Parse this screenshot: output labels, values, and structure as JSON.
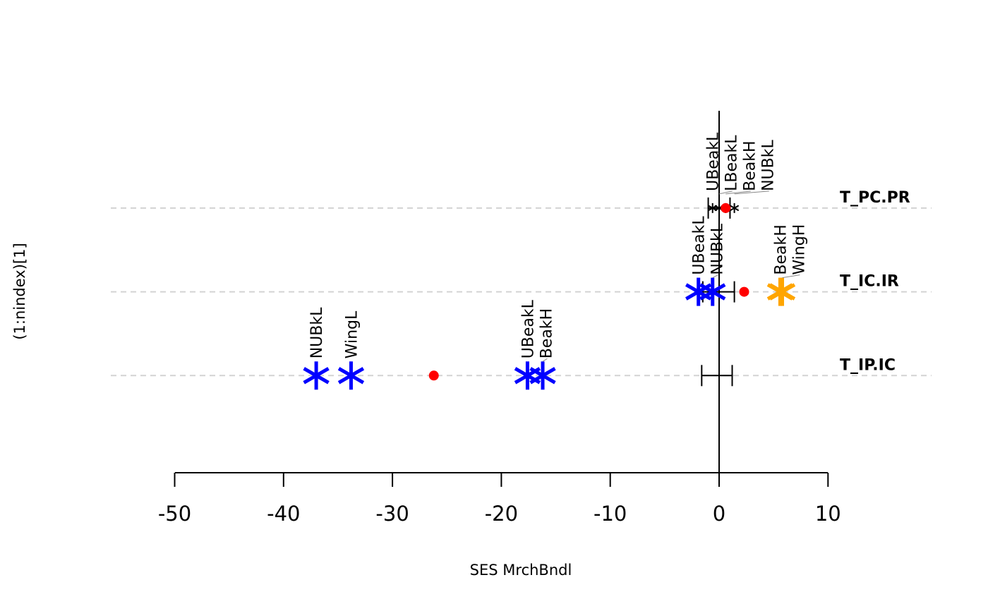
{
  "chart_data": {
    "type": "scatter",
    "title": "",
    "xlabel": "SES MrchBndl",
    "ylabel": "(1:nindex)[1]",
    "xlim": [
      -50,
      10
    ],
    "xticks": [
      -50,
      -40,
      -30,
      -20,
      -10,
      0,
      10
    ],
    "grid": "horizontal dashed at each row",
    "colors": {
      "mean": "#ff0000",
      "low": "#0000ff",
      "high": "#ffa500",
      "grid": "#d3d3d3"
    },
    "rows": [
      {
        "name": "T_IP.IC",
        "y": 1,
        "mean": -26.2,
        "ci": [
          -1.6,
          1.2
        ],
        "points": [
          {
            "label": "NUBkL",
            "x": -37.0,
            "side": "low"
          },
          {
            "label": "WingL",
            "x": -33.8,
            "side": "low"
          },
          {
            "label": "UBeakL",
            "x": -17.6,
            "side": "low"
          },
          {
            "label": "BeakH",
            "x": -16.2,
            "side": "low"
          }
        ]
      },
      {
        "name": "T_IC.IR",
        "y": 2,
        "mean": 2.3,
        "ci": [
          -1.5,
          1.4
        ],
        "points": [
          {
            "label": "UBeakL",
            "x": -1.9,
            "side": "low"
          },
          {
            "label": "NUBkL",
            "x": -0.6,
            "side": "low"
          },
          {
            "label": "BeakH",
            "x": 5.6,
            "side": "high"
          },
          {
            "label": "WingH",
            "x": 5.8,
            "side": "high"
          }
        ]
      },
      {
        "name": "T_PC.PR",
        "y": 3,
        "mean": 0.6,
        "ci": [
          -1.0,
          1.0
        ],
        "points": [
          {
            "label": "UBeakL",
            "x": -0.6,
            "side": "none"
          },
          {
            "label": "LBeakL",
            "x": 0.0,
            "side": "none"
          },
          {
            "label": "BeakH",
            "x": 0.6,
            "side": "none"
          },
          {
            "label": "NUBkL",
            "x": 1.4,
            "side": "none"
          }
        ]
      }
    ]
  }
}
